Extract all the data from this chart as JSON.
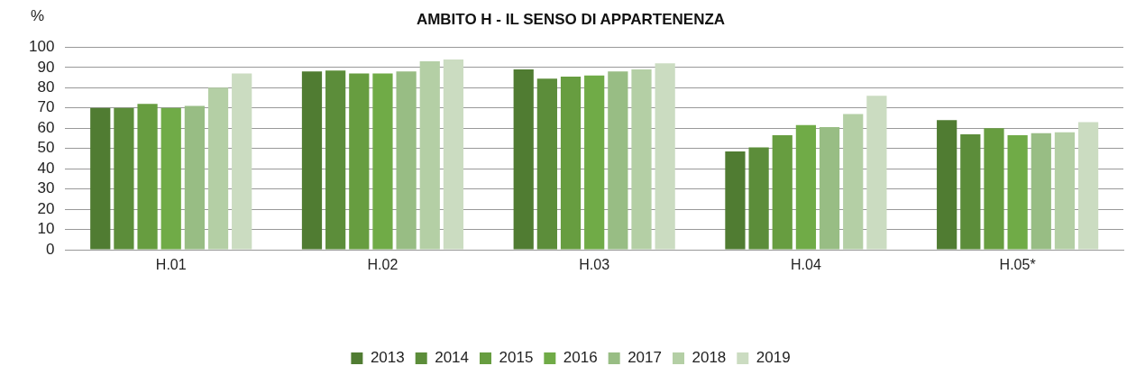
{
  "chart_data": {
    "type": "bar",
    "title": "AMBITO H - IL SENSO DI APPARTENENZA",
    "ylabel": "%",
    "categories": [
      "H.01",
      "H.02",
      "H.03",
      "H.04",
      "H.05*"
    ],
    "series": [
      {
        "name": "2013",
        "color": "#507c32",
        "values": [
          70,
          88,
          89,
          48.5,
          64
        ]
      },
      {
        "name": "2014",
        "color": "#5c8d3a",
        "values": [
          70,
          88.5,
          84.5,
          50.5,
          57
        ]
      },
      {
        "name": "2015",
        "color": "#679d40",
        "values": [
          72,
          87,
          85.5,
          56.5,
          60
        ]
      },
      {
        "name": "2016",
        "color": "#70ab47",
        "values": [
          70,
          87,
          86,
          61.5,
          56.5
        ]
      },
      {
        "name": "2017",
        "color": "#98bd84",
        "values": [
          71,
          88,
          88,
          60.5,
          57.5
        ]
      },
      {
        "name": "2018",
        "color": "#b4cfa5",
        "values": [
          80,
          93,
          89,
          67,
          58
        ]
      },
      {
        "name": "2019",
        "color": "#cbdcc1",
        "values": [
          87,
          94,
          92,
          76,
          63
        ]
      }
    ],
    "ylim": [
      0,
      100
    ],
    "yticks": [
      0,
      10,
      20,
      30,
      40,
      50,
      60,
      70,
      80,
      90,
      100
    ],
    "grid": "y",
    "legend": "bottom"
  }
}
